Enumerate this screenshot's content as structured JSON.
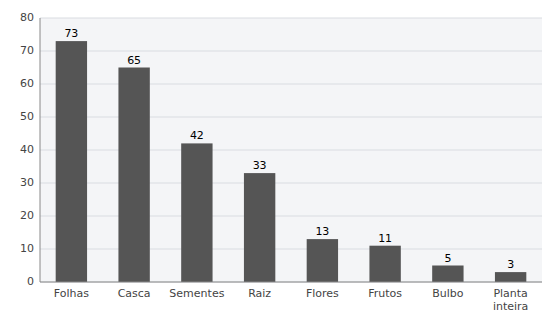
{
  "chart_data": {
    "type": "bar",
    "categories": [
      "Folhas",
      "Casca",
      "Sementes",
      "Raiz",
      "Flores",
      "Frutos",
      "Bulbo",
      "Planta\ninteira"
    ],
    "values": [
      73,
      65,
      42,
      33,
      13,
      11,
      5,
      3
    ],
    "color": "#555555",
    "ylim": [
      0,
      80
    ],
    "yticks": [
      0,
      10,
      20,
      30,
      40,
      50,
      60,
      70,
      80
    ],
    "grid": true,
    "data_labels": true
  }
}
